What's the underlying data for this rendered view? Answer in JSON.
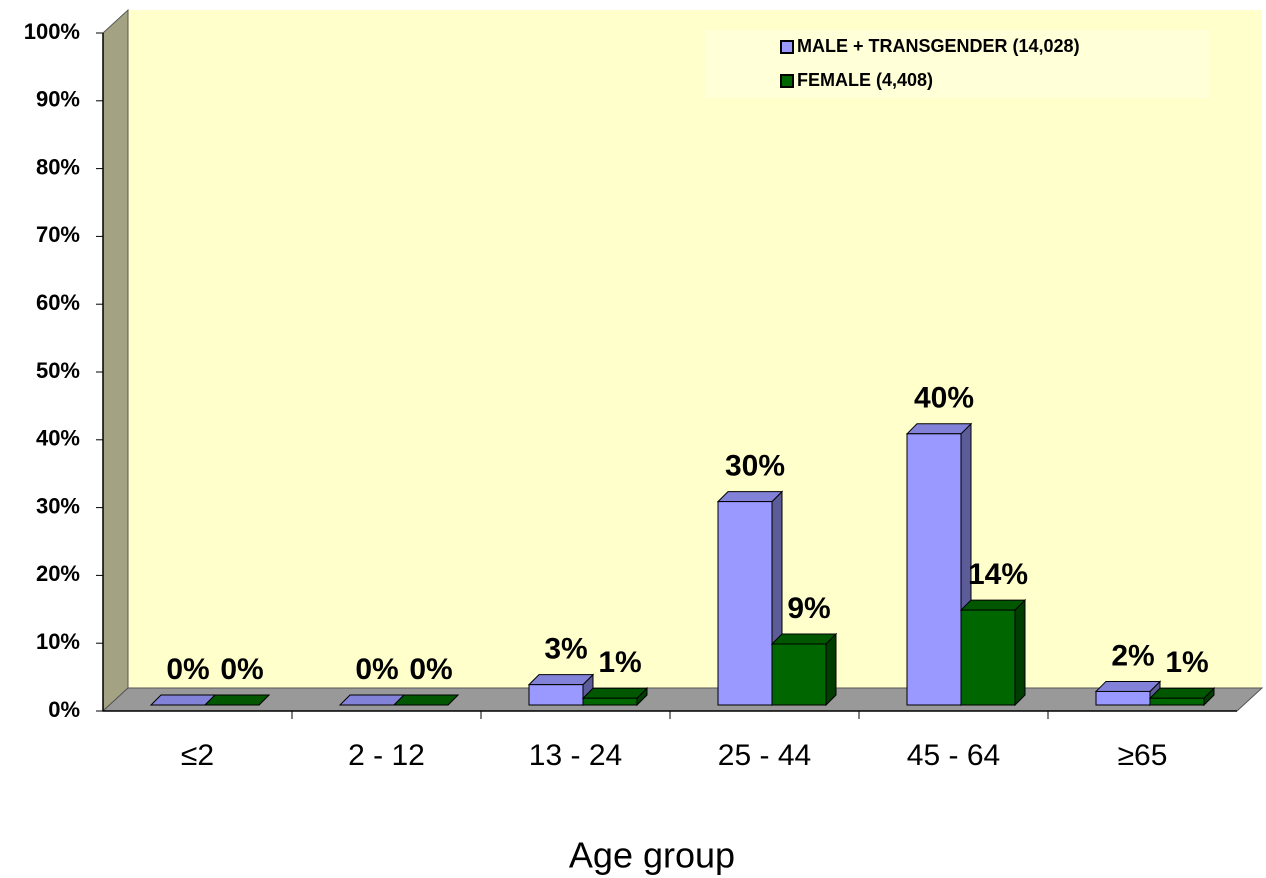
{
  "chart_data": {
    "type": "bar3d",
    "xlabel": "Age group",
    "categories": [
      "≤2",
      "2 - 12",
      "13 - 24",
      "25 - 44",
      "45 - 64",
      "≥65"
    ],
    "series": [
      {
        "name": "MALE + TRANSGENDER (14,028)",
        "color": "#9999ff",
        "values": [
          0,
          0,
          3,
          30,
          40,
          2
        ],
        "value_labels": [
          "0%",
          "0%",
          "3%",
          "30%",
          "40%",
          "2%"
        ]
      },
      {
        "name": "FEMALE (4,408)",
        "color": "#006600",
        "values": [
          0,
          0,
          1,
          9,
          14,
          1
        ],
        "value_labels": [
          "0%",
          "0%",
          "1%",
          "9%",
          "14%",
          "1%"
        ]
      }
    ],
    "ylim": [
      0,
      100
    ],
    "yticks": [
      {
        "value": 0,
        "label": "0%"
      },
      {
        "value": 10,
        "label": "10%"
      },
      {
        "value": 20,
        "label": "20%"
      },
      {
        "value": 30,
        "label": "30%"
      },
      {
        "value": 40,
        "label": "40%"
      },
      {
        "value": 50,
        "label": "50%"
      },
      {
        "value": 60,
        "label": "60%"
      },
      {
        "value": 70,
        "label": "70%"
      },
      {
        "value": 80,
        "label": "80%"
      },
      {
        "value": 90,
        "label": "90%"
      },
      {
        "value": 100,
        "label": "100%"
      }
    ],
    "legend": "upper right"
  }
}
